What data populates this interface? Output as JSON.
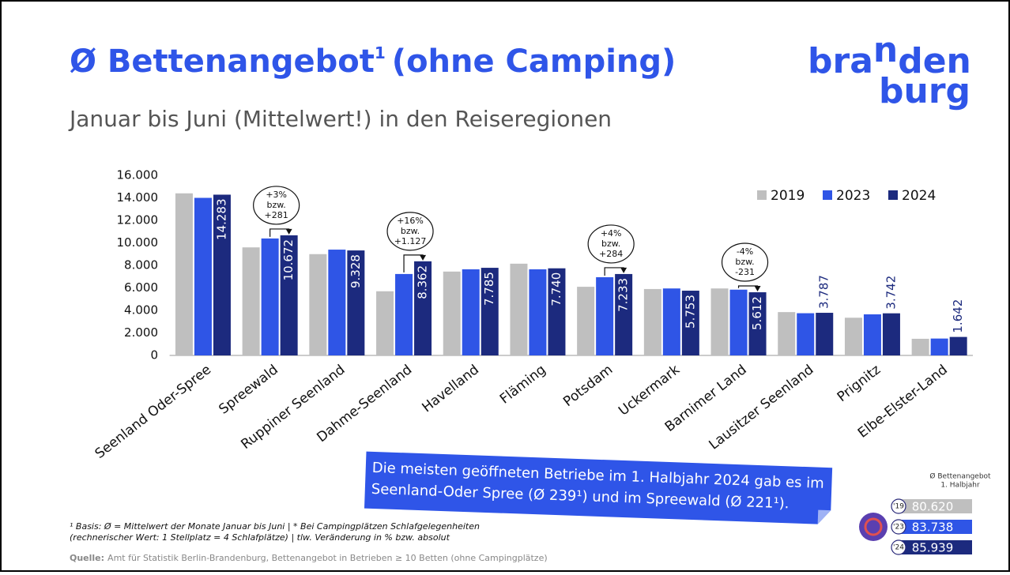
{
  "header": {
    "title": "Ø Bettenangebot",
    "title_sup": "1",
    "title_rest": "(ohne Camping)",
    "subtitle": "Januar bis Juni (Mittelwert!) in den Reiseregionen"
  },
  "logo": {
    "part1": "bra",
    "part2": "n",
    "part3": "den",
    "line2": "burg"
  },
  "chart_data": {
    "type": "bar",
    "categories": [
      "Seenland Oder-Spree",
      "Spreewald",
      "Ruppiner Seenland",
      "Dahme-Seenland",
      "Havelland",
      "Fläming",
      "Potsdam",
      "Uckermark",
      "Barnimer Land",
      "Lausitzer Seenland",
      "Prignitz",
      "Elbe-Elster-Land"
    ],
    "series": [
      {
        "name": "2019",
        "color": "#bfbfbf",
        "values": [
          14400,
          9600,
          9000,
          5700,
          7450,
          8150,
          6100,
          5900,
          5950,
          3850,
          3350,
          1480
        ]
      },
      {
        "name": "2023",
        "color": "#2f55e6",
        "values": [
          14000,
          10391,
          9400,
          7235,
          7650,
          7650,
          6949,
          5950,
          5843,
          3750,
          3650,
          1500
        ]
      },
      {
        "name": "2024",
        "color": "#1c2a7e",
        "values": [
          14283,
          10672,
          9328,
          8362,
          7785,
          7740,
          7233,
          5753,
          5612,
          3787,
          3742,
          1642
        ],
        "value_labels": [
          "14.283",
          "10.672",
          "9.328",
          "8.362",
          "7.785",
          "7.740",
          "7.233",
          "5.753",
          "5.612",
          "3.787",
          "3.742",
          "1.642"
        ]
      }
    ],
    "ylim": [
      0,
      16000
    ],
    "yticks": [
      0,
      {
        "value": 2000,
        "label": "2.000"
      },
      {
        "value": 4000,
        "label": "4.000"
      },
      {
        "value": 6000,
        "label": "6.000"
      },
      {
        "value": 8000,
        "label": "8.000"
      },
      {
        "value": 10000,
        "label": "10.000"
      },
      {
        "value": 12000,
        "label": "12.000"
      },
      {
        "value": 14000,
        "label": "14.000"
      },
      {
        "value": 16000,
        "label": "16.000"
      }
    ],
    "grid": false,
    "legend": "top-right",
    "annotations": [
      {
        "lines": [
          "+3%",
          "bzw.",
          "+281"
        ]
      },
      {
        "lines": [
          "+16%",
          "bzw.",
          "+1.127"
        ]
      },
      {
        "lines": [
          "+4%",
          "bzw.",
          "+284"
        ]
      },
      {
        "lines": [
          "-4%",
          "bzw.",
          "-231"
        ]
      }
    ]
  },
  "banner": {
    "lines": [
      "Die meisten geöffneten Betriebe im 1. Halbjahr 2024 gab es im",
      "Seenland-Oder Spree (Ø 239¹) und im Spreewald (Ø 221¹)."
    ]
  },
  "side": {
    "title": "Ø Bettenangebot",
    "subtitle": "1. Halbjahr",
    "rows": [
      {
        "year": "'19",
        "value": "80.620"
      },
      {
        "year": "'23",
        "value": "83.738"
      },
      {
        "year": "'24",
        "value": "85.939"
      }
    ]
  },
  "footnote": {
    "lines": [
      "¹ Basis: Ø  = Mittelwert der Monate Januar bis Juni | * Bei Campingplätzen Schlafgelegenheiten",
      "(rechnerischer Wert: 1 Stellplatz = 4 Schlafplätze) | tlw. Veränderung in % bzw. absolut"
    ],
    "source_label": "Quelle:",
    "source": "Amt für Statistik Berlin-Brandenburg, Bettenangebot in Betrieben ≥ 10 Betten (ohne Campingplätze)"
  }
}
